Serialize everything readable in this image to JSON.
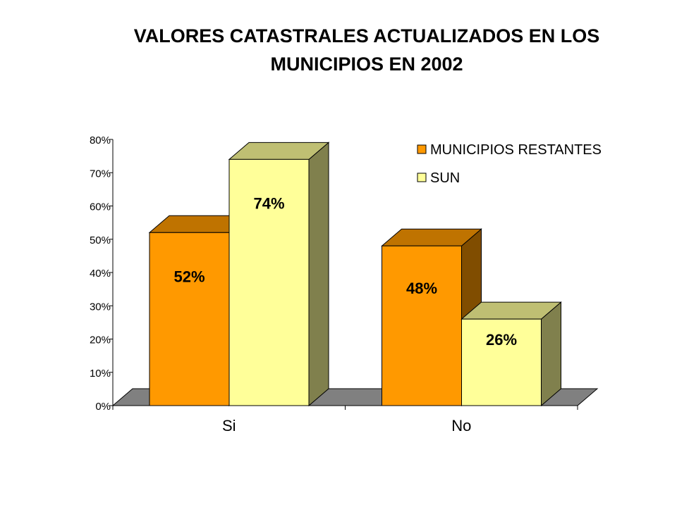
{
  "title_line1": "VALORES CATASTRALES ACTUALIZADOS EN LOS",
  "title_line2": "MUNICIPIOS  EN 2002",
  "chart_data": {
    "type": "bar",
    "categories": [
      "Si",
      "No"
    ],
    "series": [
      {
        "name": "MUNICIPIOS RESTANTES",
        "values": [
          52,
          48
        ],
        "labels": [
          "52%",
          "48%"
        ],
        "color": "#FF9900"
      },
      {
        "name": "SUN",
        "values": [
          74,
          26
        ],
        "labels": [
          "74%",
          "26%"
        ],
        "color": "#FFFF99"
      }
    ],
    "y_ticks": [
      "0%",
      "10%",
      "20%",
      "30%",
      "40%",
      "50%",
      "60%",
      "70%",
      "80%"
    ],
    "ylim": [
      0,
      80
    ],
    "legend_position": "top-right",
    "grid": false,
    "style": "3d-clustered-column"
  }
}
